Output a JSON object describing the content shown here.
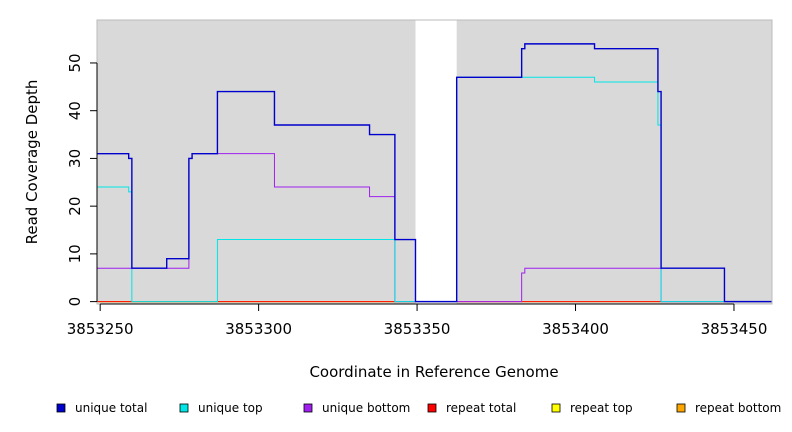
{
  "chart_data": {
    "type": "line",
    "xlabel": "Coordinate in Reference Genome",
    "ylabel": "Read Coverage Depth",
    "xlim": [
      3853249,
      3853462
    ],
    "ylim": [
      -0.5,
      59
    ],
    "x_ticks": [
      3853250,
      3853300,
      3853350,
      3853400,
      3853450
    ],
    "x_tick_labels": [
      "3853250",
      "3853300",
      "3853350",
      "3853400",
      "3853450"
    ],
    "y_ticks": [
      0,
      10,
      20,
      30,
      40,
      50
    ],
    "y_tick_labels": [
      "0",
      "10",
      "20",
      "30",
      "40",
      "50"
    ],
    "grid": false,
    "background_color": "#d9d9d9",
    "gap_regions": [
      [
        3853349.5,
        3853362.5
      ]
    ],
    "legend_position": "bottom",
    "series": [
      {
        "name": "unique total",
        "color": "#0000cc",
        "values": [
          [
            3853249,
            31
          ],
          [
            3853259,
            31
          ],
          [
            3853259,
            30
          ],
          [
            3853260,
            30
          ],
          [
            3853260,
            7
          ],
          [
            3853271,
            7
          ],
          [
            3853271,
            9
          ],
          [
            3853278,
            9
          ],
          [
            3853278,
            30
          ],
          [
            3853279,
            30
          ],
          [
            3853279,
            31
          ],
          [
            3853287,
            31
          ],
          [
            3853287,
            44
          ],
          [
            3853305,
            44
          ],
          [
            3853305,
            37
          ],
          [
            3853335,
            37
          ],
          [
            3853335,
            35
          ],
          [
            3853343,
            35
          ],
          [
            3853343,
            13
          ],
          [
            3853349.5,
            13
          ],
          [
            3853349.5,
            0
          ],
          [
            3853362.5,
            0
          ],
          [
            3853362.5,
            47
          ],
          [
            3853383,
            47
          ],
          [
            3853383,
            53
          ],
          [
            3853384,
            53
          ],
          [
            3853384,
            54
          ],
          [
            3853406,
            54
          ],
          [
            3853406,
            53
          ],
          [
            3853426,
            53
          ],
          [
            3853426,
            44
          ],
          [
            3853427,
            44
          ],
          [
            3853427,
            7
          ],
          [
            3853447,
            7
          ],
          [
            3853447,
            0
          ],
          [
            3853462,
            0
          ]
        ]
      },
      {
        "name": "unique top",
        "color": "#00e5e5",
        "values": [
          [
            3853249,
            24
          ],
          [
            3853259,
            24
          ],
          [
            3853259,
            23
          ],
          [
            3853260,
            23
          ],
          [
            3853260,
            0
          ],
          [
            3853287,
            0
          ],
          [
            3853287,
            13
          ],
          [
            3853343,
            13
          ],
          [
            3853343,
            0
          ],
          [
            3853362.5,
            0
          ],
          [
            3853362.5,
            47
          ],
          [
            3853406,
            47
          ],
          [
            3853406,
            46
          ],
          [
            3853426,
            46
          ],
          [
            3853426,
            37
          ],
          [
            3853427,
            37
          ],
          [
            3853427,
            0
          ],
          [
            3853462,
            0
          ]
        ]
      },
      {
        "name": "unique bottom",
        "color": "#a020f0",
        "values": [
          [
            3853249,
            7
          ],
          [
            3853260,
            7
          ],
          [
            3853260,
            7
          ],
          [
            3853278,
            7
          ],
          [
            3853278,
            30
          ],
          [
            3853279,
            30
          ],
          [
            3853279,
            31
          ],
          [
            3853305,
            31
          ],
          [
            3853305,
            24
          ],
          [
            3853335,
            24
          ],
          [
            3853335,
            22
          ],
          [
            3853343,
            22
          ],
          [
            3853343,
            0
          ],
          [
            3853383,
            0
          ],
          [
            3853383,
            6
          ],
          [
            3853384,
            6
          ],
          [
            3853384,
            7
          ],
          [
            3853427,
            7
          ],
          [
            3853427,
            0
          ],
          [
            3853462,
            0
          ]
        ]
      },
      {
        "name": "repeat total",
        "color": "#ff0000",
        "values": [
          [
            3853249,
            0
          ],
          [
            3853462,
            0
          ]
        ]
      },
      {
        "name": "repeat top",
        "color": "#ffff00",
        "values": [
          [
            3853249,
            0
          ],
          [
            3853462,
            0
          ]
        ]
      },
      {
        "name": "repeat bottom",
        "color": "#ffa500",
        "values": [
          [
            3853249,
            0
          ],
          [
            3853349.5,
            0
          ]
        ]
      }
    ]
  }
}
